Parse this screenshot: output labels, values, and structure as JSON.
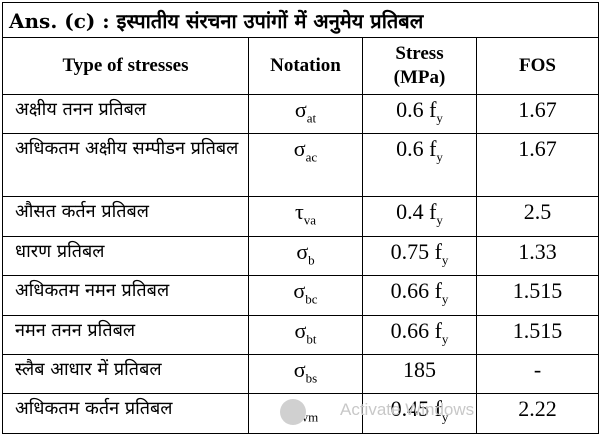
{
  "title": "Ans. (c) : इस्पातीय संरचना उपांगों में अनुमेय प्रतिबल",
  "headers": {
    "type": "Type of stresses",
    "notation": "Notation",
    "stress_line1": "Stress",
    "stress_line2": "(MPa)",
    "fos": "FOS"
  },
  "rows": [
    {
      "type": "अक्षीय तनन प्रतिबल",
      "sym": "σ",
      "sub": "at",
      "stress": "0.6 f",
      "stress_sub": "y",
      "fos": "1.67"
    },
    {
      "type": "अधिकतम अक्षीय सम्पीडन प्रतिबल",
      "sym": "σ",
      "sub": "ac",
      "stress": "0.6 f",
      "stress_sub": "y",
      "fos": "1.67"
    },
    {
      "type": "औसत कर्तन प्रतिबल",
      "sym": "τ",
      "sub": "va",
      "stress": "0.4 f",
      "stress_sub": "y",
      "fos": "2.5"
    },
    {
      "type": "धारण प्रतिबल",
      "sym": "σ",
      "sub": "b",
      "stress": "0.75 f",
      "stress_sub": "y",
      "fos": "1.33"
    },
    {
      "type": "अधिकतम नमन प्रतिबल",
      "sym": "σ",
      "sub": "bc",
      "stress": "0.66 f",
      "stress_sub": "y",
      "fos": "1.515"
    },
    {
      "type": "नमन तनन प्रतिबल",
      "sym": "σ",
      "sub": "bt",
      "stress": "0.66 f",
      "stress_sub": "y",
      "fos": "1.515"
    },
    {
      "type": "स्लैब आधार में प्रतिबल",
      "sym": "σ",
      "sub": "bs",
      "stress": "185",
      "stress_sub": "",
      "fos": "-"
    },
    {
      "type": "अधिकतम कर्तन प्रतिबल",
      "sym": "τ",
      "sub": "vm",
      "stress": "0.45 f",
      "stress_sub": "y",
      "fos": "2.22"
    }
  ],
  "watermark": "Activate Windows"
}
